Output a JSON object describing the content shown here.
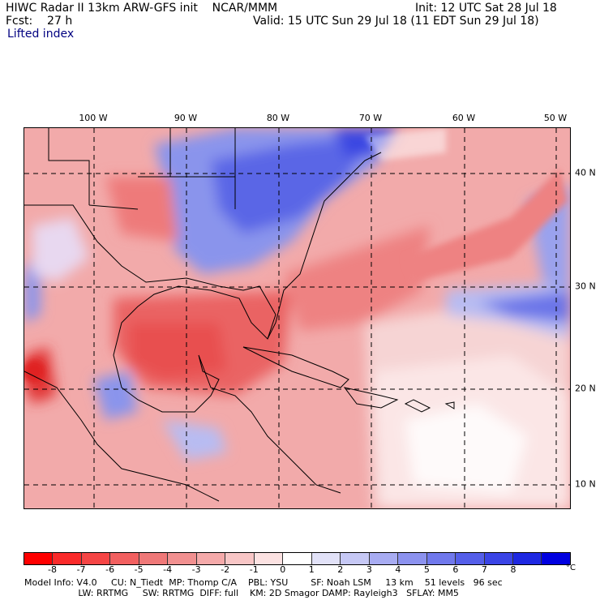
{
  "header": {
    "line1_left": "HIWC Radar II 13km ARW-GFS init    NCAR/MMM",
    "line1_right": "Init: 12 UTC Sat 28 Jul 18",
    "line2_left": "Fcst:    27 h",
    "line2_right": "Valid: 15 UTC Sun 29 Jul 18 (11 EDT Sun 29 Jul 18)",
    "field": "Lifted index"
  },
  "map": {
    "longitude_labels": [
      "100 W",
      "90 W",
      "80 W",
      "70 W",
      "60 W",
      "50 W"
    ],
    "latitude_labels": [
      "40 N",
      "30 N",
      "20 N",
      "10 N"
    ],
    "colors": {
      "ocean_base": "#f0a8a8",
      "stable_blue": "#5a6ae6",
      "unstable_red": "#e84040"
    }
  },
  "colorbar": {
    "ticks": [
      "-8",
      "-7",
      "-6",
      "-5",
      "-4",
      "-3",
      "-2",
      "-1",
      "0",
      "1",
      "2",
      "3",
      "4",
      "5",
      "6",
      "7",
      "8"
    ],
    "unit": "°C",
    "colors": [
      "#ff0000",
      "#fa2a2a",
      "#f54545",
      "#f26060",
      "#ef7878",
      "#f19090",
      "#f5aaaa",
      "#f8c6c6",
      "#fce2e2",
      "#ffffff",
      "#e2e2f8",
      "#c6c8f5",
      "#a8acf2",
      "#8c92ef",
      "#7078ec",
      "#545ee9",
      "#3a44e6",
      "#1e28e2",
      "#0000e0"
    ]
  },
  "footer": {
    "line1": "Model Info: V4.0     CU: N_Tiedt  MP: Thomp C/A    PBL: YSU        SF: Noah LSM     13 km    51 levels   96 sec",
    "line2": "                   LW: RRTMG     SW: RRTMG  DIFF: full    KM: 2D Smagor DAMP: Rayleigh3   SFLAY: MM5"
  }
}
